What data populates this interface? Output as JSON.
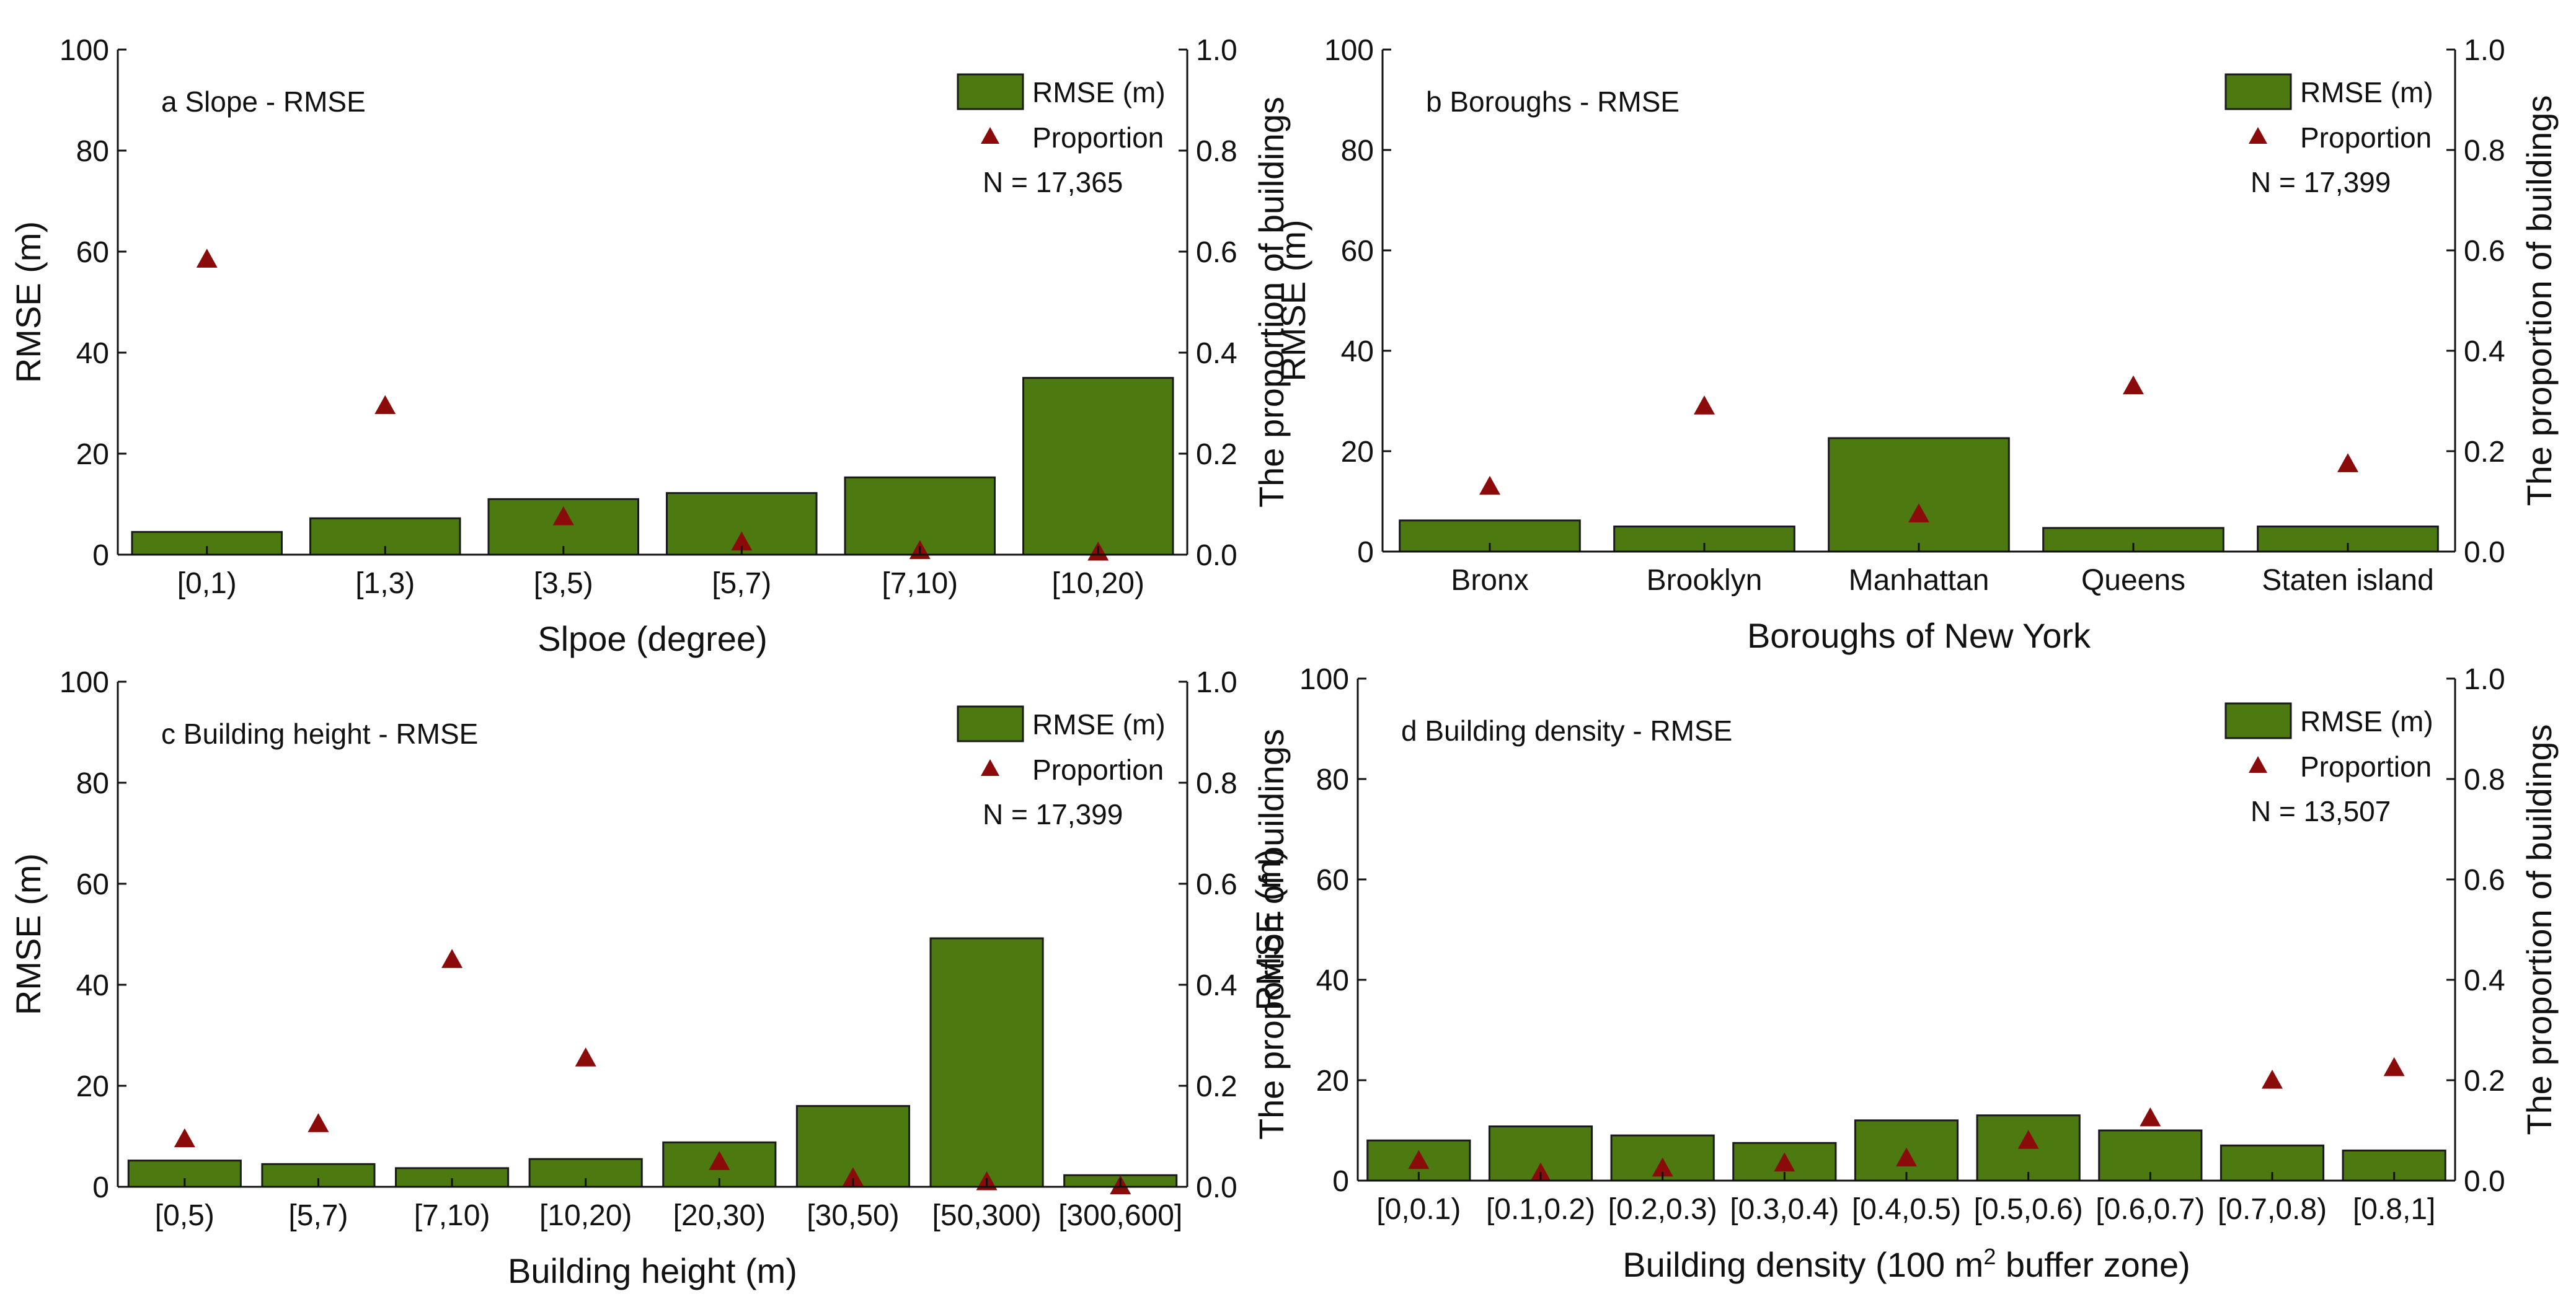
{
  "colors": {
    "bar": "#4c7a10",
    "bar_edge": "#1a1a1a",
    "marker": "#8b0a0a",
    "axis": "#111111"
  },
  "chart_data": [
    {
      "type": "bar",
      "title": "a Slope - RMSE",
      "xlabel": "Slpoe (degree)",
      "ylabel": "RMSE (m)",
      "y2label": "The proportion of buildings",
      "ylim": [
        0,
        100
      ],
      "y2lim": [
        0,
        1
      ],
      "yticks": [
        "0",
        "20",
        "40",
        "60",
        "80",
        "100"
      ],
      "y2ticks": [
        "0.0",
        "0.2",
        "0.4",
        "0.6",
        "0.8",
        "1.0"
      ],
      "legend": {
        "bar": "RMSE (m)",
        "marker": "Proportion",
        "n": "N = 17,365"
      },
      "categories": [
        "[0,1)",
        "[1,3)",
        "[3,5)",
        "[5,7)",
        "[7,10)",
        "[10,20)"
      ],
      "series": [
        {
          "name": "RMSE (m)",
          "kind": "bar",
          "axis": "left",
          "values": [
            4.5,
            7.2,
            11.0,
            12.2,
            15.3,
            35.0
          ]
        },
        {
          "name": "Proportion",
          "kind": "triangle",
          "axis": "right",
          "values": [
            0.585,
            0.295,
            0.075,
            0.025,
            0.008,
            0.005
          ]
        }
      ]
    },
    {
      "type": "bar",
      "title": "b Boroughs - RMSE",
      "xlabel": "Boroughs of New York",
      "ylabel": "RMSE (m)",
      "y2label": "The proportion of buildings",
      "ylim": [
        0,
        100
      ],
      "y2lim": [
        0,
        1
      ],
      "yticks": [
        "0",
        "20",
        "40",
        "60",
        "80",
        "100"
      ],
      "y2ticks": [
        "0.0",
        "0.2",
        "0.4",
        "0.6",
        "0.8",
        "1.0"
      ],
      "legend": {
        "bar": "RMSE (m)",
        "marker": "Proportion",
        "n": "N = 17,399"
      },
      "categories": [
        "Bronx",
        "Brooklyn",
        "Manhattan",
        "Queens",
        "Staten island"
      ],
      "series": [
        {
          "name": "RMSE (m)",
          "kind": "bar",
          "axis": "left",
          "values": [
            6.2,
            5.0,
            22.6,
            4.7,
            5.0
          ]
        },
        {
          "name": "Proportion",
          "kind": "triangle",
          "axis": "right",
          "values": [
            0.13,
            0.29,
            0.075,
            0.33,
            0.175
          ]
        }
      ]
    },
    {
      "type": "bar",
      "title": "c Building height - RMSE",
      "xlabel": "Building height (m)",
      "ylabel": "RMSE (m)",
      "y2label": "The proportion of buildings",
      "ylim": [
        0,
        100
      ],
      "y2lim": [
        0,
        1
      ],
      "yticks": [
        "0",
        "20",
        "40",
        "60",
        "80",
        "100"
      ],
      "y2ticks": [
        "0.0",
        "0.2",
        "0.4",
        "0.6",
        "0.8",
        "1.0"
      ],
      "legend": {
        "bar": "RMSE (m)",
        "marker": "Proportion",
        "n": "N = 17,399"
      },
      "categories": [
        "[0,5)",
        "[5,7)",
        "[7,10)",
        "[10,20)",
        "[20,30)",
        "[30,50)",
        "[50,300)",
        "[300,600]"
      ],
      "series": [
        {
          "name": "RMSE (m)",
          "kind": "bar",
          "axis": "left",
          "values": [
            5.2,
            4.5,
            3.7,
            5.5,
            8.8,
            16.0,
            49.2,
            2.3
          ]
        },
        {
          "name": "Proportion",
          "kind": "triangle",
          "axis": "right",
          "values": [
            0.095,
            0.125,
            0.45,
            0.255,
            0.05,
            0.018,
            0.01,
            0.002
          ]
        }
      ]
    },
    {
      "type": "bar",
      "title": "d Building density - RMSE",
      "xlabel": "Building density (100 m",
      "xlabel_sup": "2",
      "xlabel_end": " buffer zone)",
      "ylabel": "RMSE (m)",
      "y2label": "The proportion of buildings",
      "ylim": [
        0,
        100
      ],
      "y2lim": [
        0,
        1
      ],
      "yticks": [
        "0",
        "20",
        "40",
        "60",
        "80",
        "100"
      ],
      "y2ticks": [
        "0.0",
        "0.2",
        "0.4",
        "0.6",
        "0.8",
        "1.0"
      ],
      "legend": {
        "bar": "RMSE (m)",
        "marker": "Proportion",
        "n": "N = 13,507"
      },
      "categories": [
        "[0,0.1)",
        "[0.1,0.2)",
        "[0.2,0.3)",
        "[0.3,0.4)",
        "[0.4,0.5)",
        "[0.5,0.6)",
        "[0.6,0.7)",
        "[0.7,0.8)",
        "[0.8,1]"
      ],
      "series": [
        {
          "name": "RMSE (m)",
          "kind": "bar",
          "axis": "left",
          "values": [
            8.0,
            10.8,
            9.0,
            7.5,
            12.0,
            13.0,
            10.0,
            7.0,
            6.0
          ]
        },
        {
          "name": "Proportion",
          "kind": "triangle",
          "axis": "right",
          "values": [
            0.04,
            0.015,
            0.025,
            0.035,
            0.045,
            0.08,
            0.125,
            0.2,
            0.225
          ]
        }
      ]
    }
  ]
}
